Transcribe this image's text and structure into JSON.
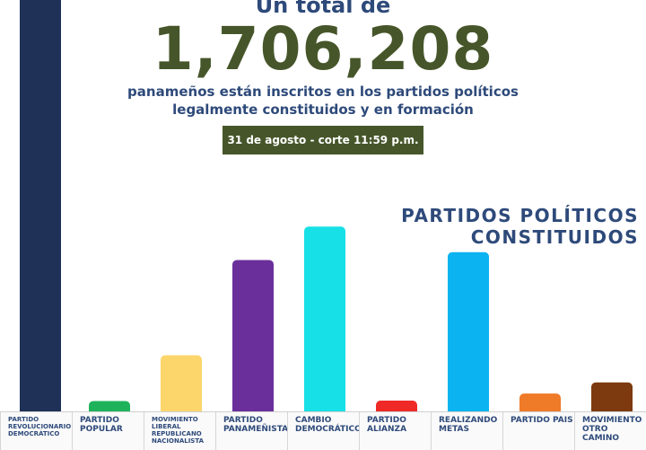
{
  "header": {
    "top": "Un total de",
    "total": "1,706,208",
    "line1": "panameños están inscritos en los partidos políticos",
    "line2": "legalmente constituidos y en formación",
    "badge": "31 de agosto - corte 11:59 p.m."
  },
  "section": {
    "line1": "PARTIDOS POLÍTICOS",
    "line2": "CONSTITUIDOS"
  },
  "chart_data": {
    "type": "bar",
    "categories": [
      "PARTIDO REVOLUCIONARIO DEMOCRÁTICO",
      "PARTIDO POPULAR",
      "MOVIMIENTO LIBERAL REPUBLICANO NACIONALISTA",
      "PARTIDO PANAMEÑISTA",
      "CAMBIO DEMOCRÁTICO",
      "PARTIDO ALIANZA",
      "REALIZANDO METAS",
      "PARTIDO PAIS",
      "MOVIMIENTO OTRO CAMINO"
    ],
    "values": [
      1.0,
      0.023,
      0.134,
      0.365,
      0.446,
      0.024,
      0.384,
      0.041,
      0.068
    ],
    "colors": [
      "#1f3157",
      "#1eb35b",
      "#fcd66b",
      "#6b2f9b",
      "#17e0e6",
      "#ef2a26",
      "#0bb3f1",
      "#ef7a27",
      "#7c3a0e"
    ],
    "title": "",
    "xlabel": "",
    "ylabel": "",
    "ylim": [
      0,
      1.0
    ]
  }
}
